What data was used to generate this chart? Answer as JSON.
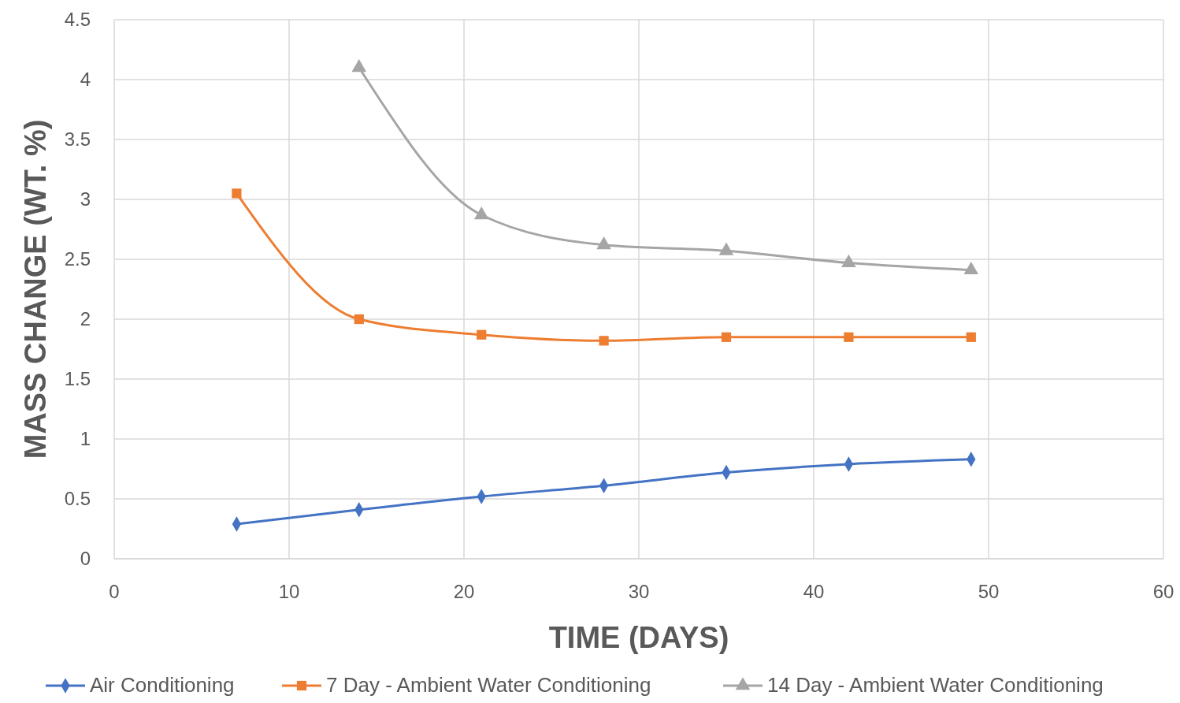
{
  "chart_data": {
    "type": "line",
    "xlabel": "TIME  (DAYS)",
    "ylabel": "MASS CHANGE (WT. %)",
    "xlim": [
      0,
      60
    ],
    "xticks": [
      0,
      10,
      20,
      30,
      40,
      50,
      60
    ],
    "ylim": [
      0,
      4.5
    ],
    "yticks": [
      0,
      0.5,
      1,
      1.5,
      2,
      2.5,
      3,
      3.5,
      4,
      4.5
    ],
    "grid": true,
    "legend": "bottom",
    "series": [
      {
        "name": "Air Conditioning",
        "color": "#4472c4",
        "marker": "diamond",
        "x": [
          7,
          14,
          21,
          28,
          35,
          42,
          49
        ],
        "values": [
          0.29,
          0.41,
          0.52,
          0.61,
          0.72,
          0.79,
          0.83
        ]
      },
      {
        "name": "7 Day - Ambient Water Conditioning",
        "color": "#ed7d31",
        "marker": "square",
        "x": [
          7,
          14,
          21,
          28,
          35,
          42,
          49
        ],
        "values": [
          3.05,
          2.0,
          1.87,
          1.82,
          1.85,
          1.85,
          1.85
        ]
      },
      {
        "name": "14 Day - Ambient Water Conditioning",
        "color": "#a5a5a5",
        "marker": "triangle",
        "x": [
          14,
          21,
          28,
          35,
          42,
          49
        ],
        "values": [
          4.1,
          2.87,
          2.62,
          2.57,
          2.47,
          2.41
        ]
      }
    ]
  }
}
